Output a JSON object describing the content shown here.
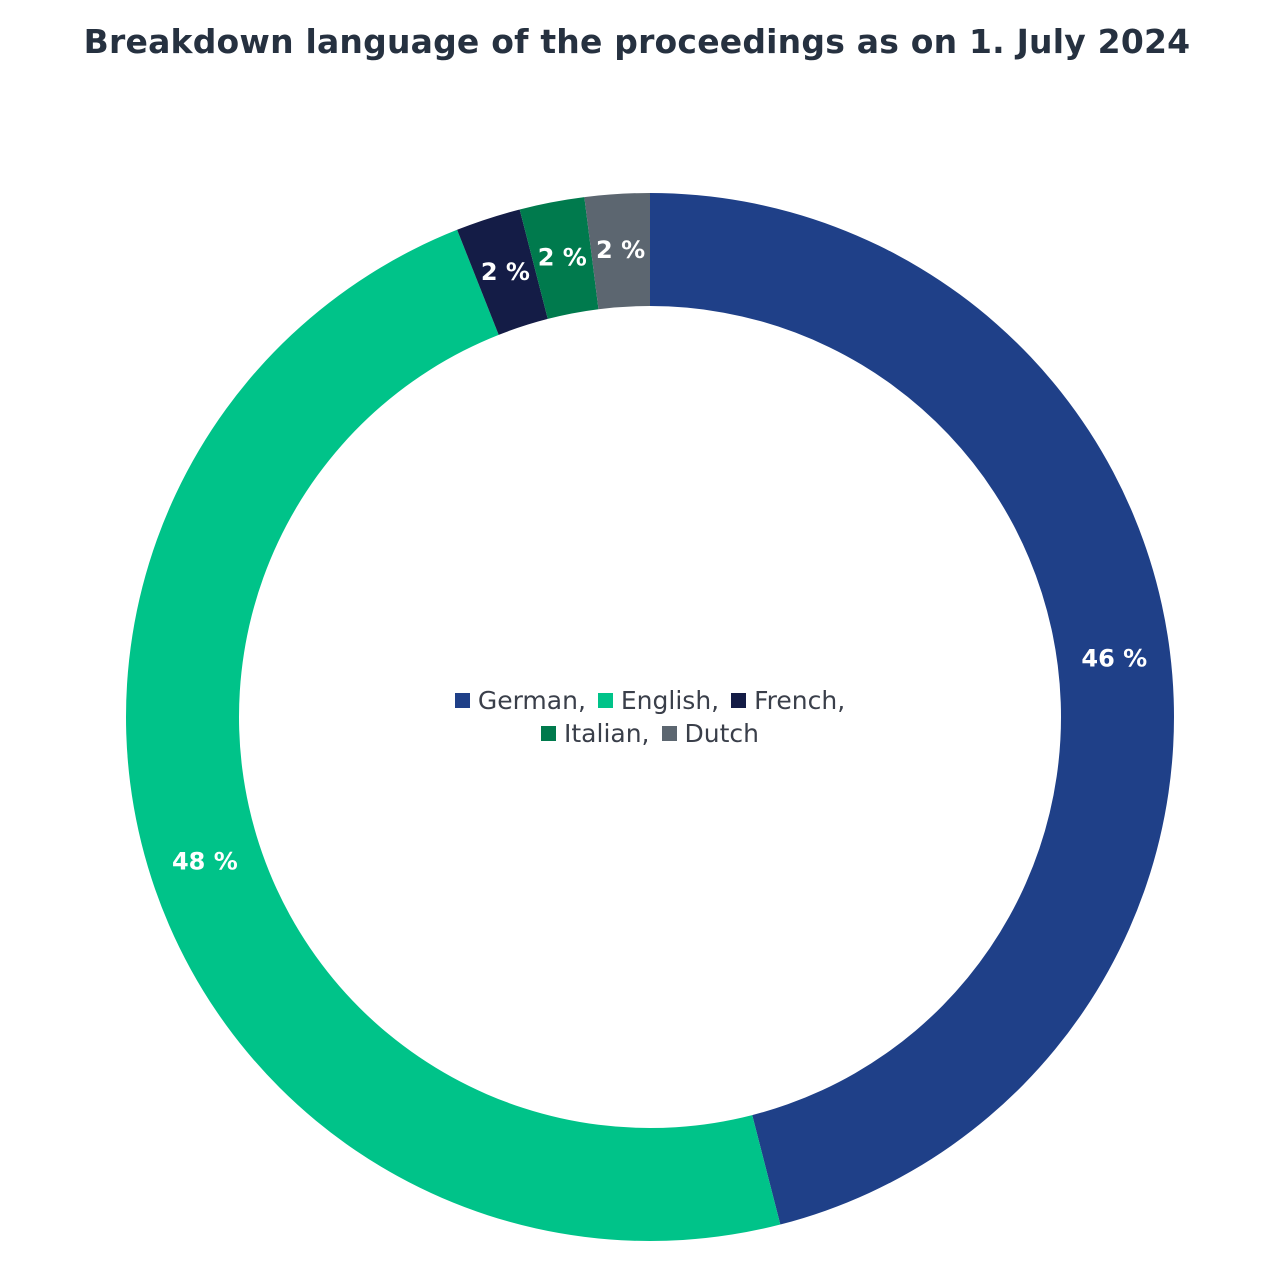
{
  "chart_data": {
    "type": "pie",
    "variant": "donut",
    "title": "Breakdown language of the proceedings as on 1. July 2024",
    "categories": [
      "German",
      "English",
      "French",
      "Italian",
      "Dutch"
    ],
    "values": [
      46,
      48,
      2,
      2,
      2
    ],
    "value_labels": [
      "46 %",
      "48 %",
      "2 %",
      "2 %",
      "2 %"
    ],
    "unit": "%",
    "colors": [
      "#1f4088",
      "#00c389",
      "#141c46",
      "#007a4d",
      "#5c6670"
    ],
    "legend": {
      "placement": "center",
      "labels": [
        "German,",
        "English,",
        "French,",
        "Italian,",
        "Dutch"
      ]
    }
  }
}
